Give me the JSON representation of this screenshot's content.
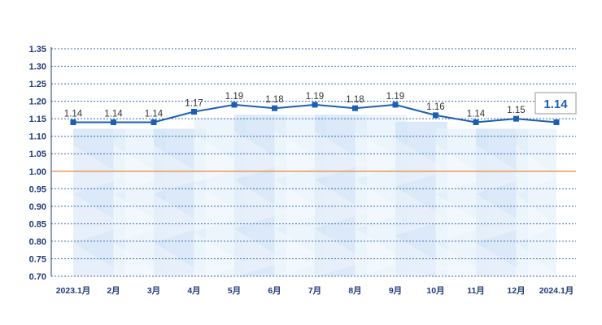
{
  "chart_data": {
    "type": "line",
    "categories": [
      "2023.1月",
      "2月",
      "3月",
      "4月",
      "5月",
      "6月",
      "7月",
      "8月",
      "9月",
      "10月",
      "11月",
      "12月",
      "2024.1月"
    ],
    "values": [
      1.14,
      1.14,
      1.14,
      1.17,
      1.19,
      1.18,
      1.19,
      1.18,
      1.19,
      1.16,
      1.14,
      1.15,
      1.14
    ],
    "data_labels": [
      "1.14",
      "1.14",
      "1.14",
      "1.17",
      "1.19",
      "1.18",
      "1.19",
      "1.18",
      "1.19",
      "1.16",
      "1.14",
      "1.15",
      ""
    ],
    "callout": "1.14",
    "ylim": [
      0.7,
      1.35
    ],
    "yticks": [
      "0.70",
      "0.75",
      "0.80",
      "0.85",
      "0.90",
      "0.95",
      "1.00",
      "1.05",
      "1.10",
      "1.15",
      "1.20",
      "1.25",
      "1.30",
      "1.35"
    ],
    "reference_line": 1.0,
    "grid": true,
    "title": "",
    "xlabel": "",
    "ylabel": ""
  },
  "colors": {
    "line": "#1a5fb4",
    "marker": "#1a5fb4",
    "reference_line": "#e8843c",
    "grid": "#3d66b0",
    "axis": "#1f3a7a",
    "band_light": "#e6f1fb",
    "band_mid": "#cfe2f6",
    "callout_border": "#b9b9b9"
  }
}
